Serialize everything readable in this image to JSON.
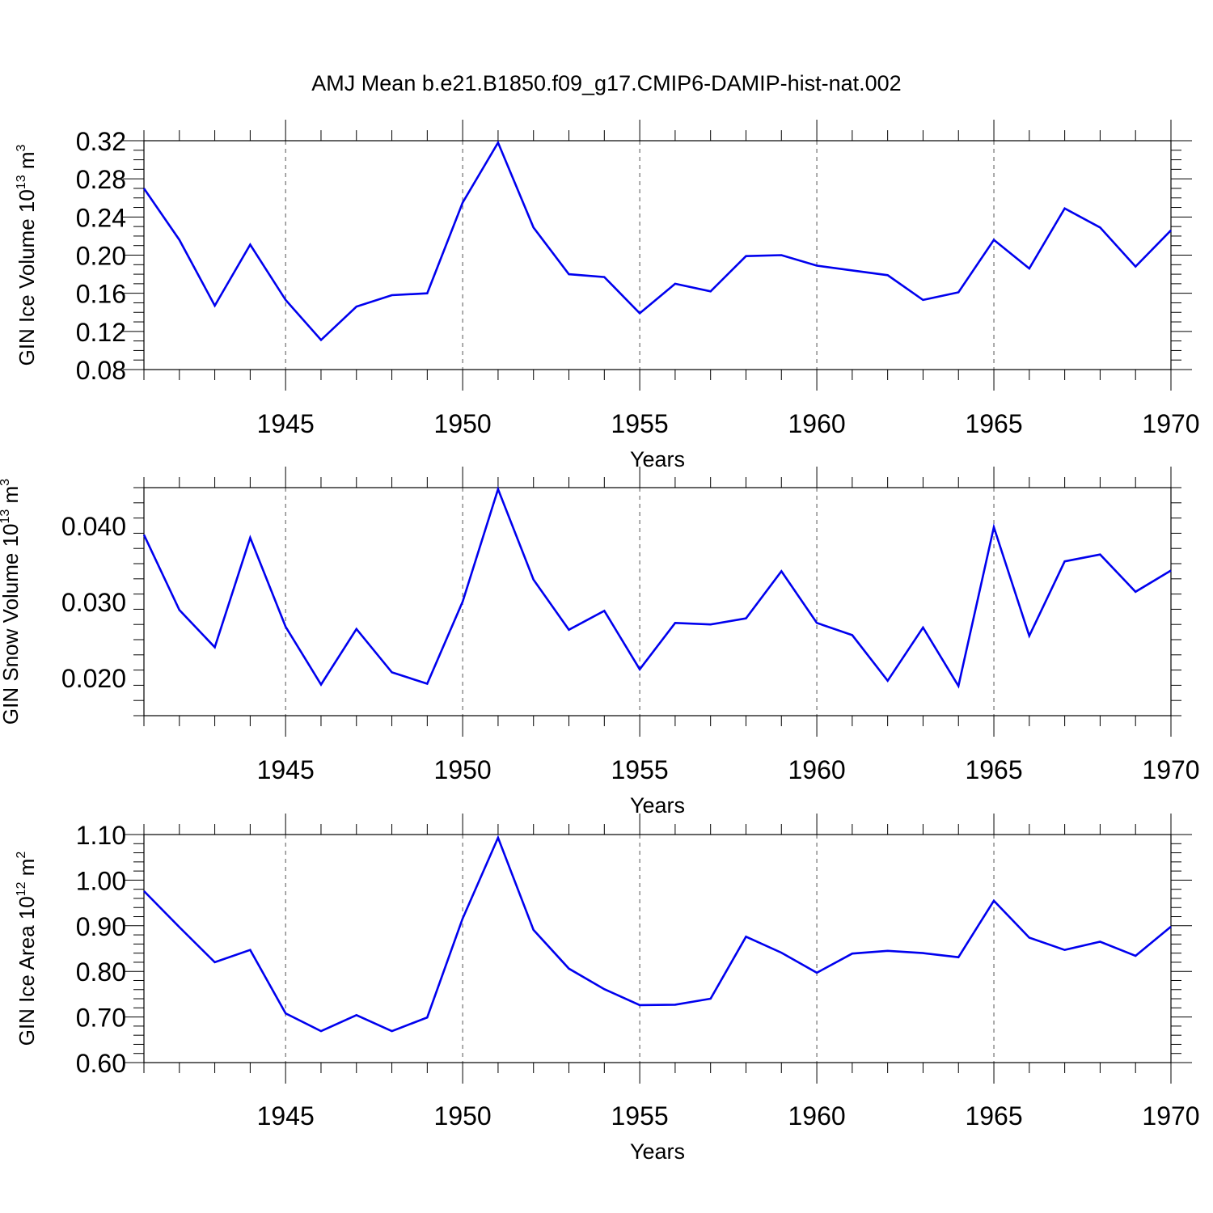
{
  "chart_data": [
    {
      "type": "line",
      "title": "AMJ Mean b.e21.B1850.f09_g17.CMIP6-DAMIP-hist-nat.002",
      "xlabel": "Years",
      "ylabel": "GIN Ice Volume 10",
      "ylabel_exp": "13",
      "ylabel_unit": " m",
      "ylabel_unit_exp": "3",
      "xlim": [
        1941,
        1970
      ],
      "ylim": [
        0.08,
        0.32
      ],
      "xticks": [
        1945,
        1950,
        1955,
        1960,
        1965,
        1970
      ],
      "yticks": [
        0.08,
        0.12,
        0.16,
        0.2,
        0.24,
        0.28,
        0.32
      ],
      "ytick_labels": [
        "0.08",
        "0.12",
        "0.16",
        "0.20",
        "0.24",
        "0.28",
        "0.32"
      ],
      "ymin_step": 0.01,
      "gridlines": "vertical dashed at major x ticks",
      "line_color": "#0000ee",
      "x": [
        1941,
        1942,
        1943,
        1944,
        1945,
        1946,
        1947,
        1948,
        1949,
        1950,
        1951,
        1952,
        1953,
        1954,
        1955,
        1956,
        1957,
        1958,
        1959,
        1960,
        1961,
        1962,
        1963,
        1964,
        1965,
        1966,
        1967,
        1968,
        1969,
        1970
      ],
      "values": [
        0.27,
        0.216,
        0.147,
        0.211,
        0.153,
        0.111,
        0.146,
        0.158,
        0.16,
        0.255,
        0.318,
        0.229,
        0.18,
        0.177,
        0.139,
        0.17,
        0.162,
        0.199,
        0.2,
        0.189,
        0.184,
        0.179,
        0.153,
        0.161,
        0.216,
        0.186,
        0.249,
        0.229,
        0.188,
        0.226
      ]
    },
    {
      "type": "line",
      "xlabel": "Years",
      "ylabel": "GIN Snow Volume 10",
      "ylabel_exp": "13",
      "ylabel_unit": " m",
      "ylabel_unit_exp": "3",
      "xlim": [
        1941,
        1970
      ],
      "ylim": [
        0.015,
        0.045
      ],
      "xticks": [
        1945,
        1950,
        1955,
        1960,
        1965,
        1970
      ],
      "yticks": [
        0.02,
        0.03,
        0.04
      ],
      "ytick_labels": [
        "0.020",
        "0.030",
        "0.040"
      ],
      "ymin_step": 0.002,
      "gridlines": "vertical dashed at major x ticks",
      "line_color": "#0000ee",
      "x": [
        1941,
        1942,
        1943,
        1944,
        1945,
        1946,
        1947,
        1948,
        1949,
        1950,
        1951,
        1952,
        1953,
        1954,
        1955,
        1956,
        1957,
        1958,
        1959,
        1960,
        1961,
        1962,
        1963,
        1964,
        1965,
        1966,
        1967,
        1968,
        1969,
        1970
      ],
      "values": [
        0.0388,
        0.0289,
        0.024,
        0.0384,
        0.0267,
        0.0191,
        0.0264,
        0.0207,
        0.0192,
        0.03,
        0.0448,
        0.0329,
        0.0263,
        0.0288,
        0.0211,
        0.0272,
        0.027,
        0.0278,
        0.034,
        0.0272,
        0.0256,
        0.0196,
        0.0266,
        0.0189,
        0.0398,
        0.0255,
        0.0353,
        0.0362,
        0.0313,
        0.0341
      ]
    },
    {
      "type": "line",
      "xlabel": "Years",
      "ylabel": "GIN Ice Area 10",
      "ylabel_exp": "12",
      "ylabel_unit": " m",
      "ylabel_unit_exp": "2",
      "xlim": [
        1941,
        1970
      ],
      "ylim": [
        0.6,
        1.1
      ],
      "xticks": [
        1945,
        1950,
        1955,
        1960,
        1965,
        1970
      ],
      "yticks": [
        0.6,
        0.7,
        0.8,
        0.9,
        1.0,
        1.1
      ],
      "ytick_labels": [
        "0.60",
        "0.70",
        "0.80",
        "0.90",
        "1.00",
        "1.10"
      ],
      "ymin_step": 0.02,
      "gridlines": "vertical dashed at major x ticks",
      "line_color": "#0000ee",
      "x": [
        1941,
        1942,
        1943,
        1944,
        1945,
        1946,
        1947,
        1948,
        1949,
        1950,
        1951,
        1952,
        1953,
        1954,
        1955,
        1956,
        1957,
        1958,
        1959,
        1960,
        1961,
        1962,
        1963,
        1964,
        1965,
        1966,
        1967,
        1968,
        1969,
        1970
      ],
      "values": [
        0.976,
        0.897,
        0.82,
        0.847,
        0.708,
        0.669,
        0.704,
        0.669,
        0.699,
        0.916,
        1.093,
        0.891,
        0.806,
        0.761,
        0.726,
        0.727,
        0.74,
        0.876,
        0.841,
        0.797,
        0.839,
        0.845,
        0.84,
        0.831,
        0.955,
        0.874,
        0.847,
        0.865,
        0.834,
        0.898
      ]
    }
  ]
}
